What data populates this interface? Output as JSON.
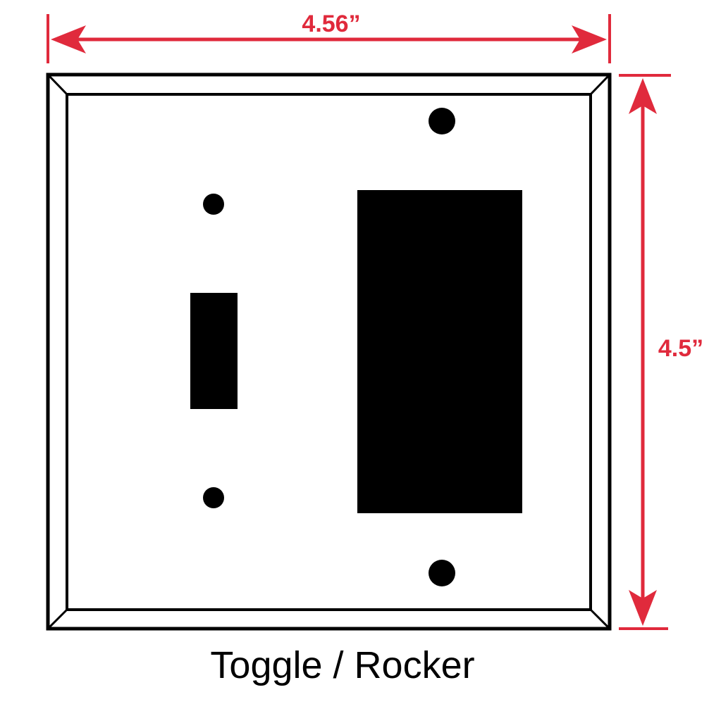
{
  "dimensions": {
    "width_label": "4.56”",
    "height_label": "4.5”"
  },
  "caption": "Toggle / Rocker",
  "colors": {
    "dimension": "#e02a3c",
    "plate": "#000000",
    "background": "#ffffff"
  }
}
